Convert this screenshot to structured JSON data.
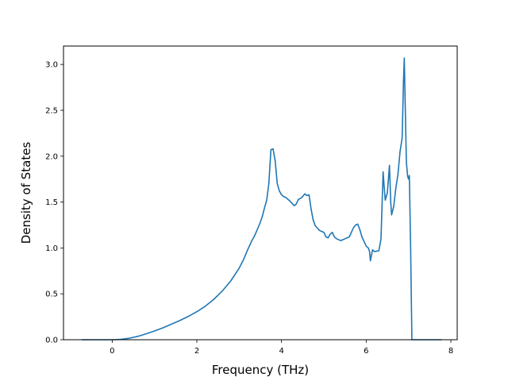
{
  "chart_data": {
    "type": "line",
    "title": "",
    "xlabel": "Frequency (THz)",
    "ylabel": "Density of States",
    "xlim": [
      -1.15,
      8.15
    ],
    "ylim": [
      0.0,
      3.2
    ],
    "xticks": [
      0,
      2,
      4,
      6,
      8
    ],
    "xtick_labels": [
      "0",
      "2",
      "4",
      "6",
      "8"
    ],
    "yticks": [
      0.0,
      0.5,
      1.0,
      1.5,
      2.0,
      2.5,
      3.0
    ],
    "ytick_labels": [
      "0.0",
      "0.5",
      "1.0",
      "1.5",
      "2.0",
      "2.5",
      "3.0"
    ],
    "grid": false,
    "legend": "none",
    "colors": {
      "line": "#1f77b4",
      "axes": "#000000",
      "background": "#ffffff"
    },
    "series": [
      {
        "x": [
          -0.72,
          -0.5,
          -0.25,
          0.0,
          0.2,
          0.4,
          0.6,
          0.8,
          1.0,
          1.2,
          1.4,
          1.6,
          1.8,
          2.0,
          2.2,
          2.4,
          2.6,
          2.8,
          3.0,
          3.1,
          3.2,
          3.3,
          3.35,
          3.4,
          3.5,
          3.55,
          3.6,
          3.65,
          3.7,
          3.75,
          3.8,
          3.85,
          3.9,
          3.95,
          4.0,
          4.05,
          4.1,
          4.2,
          4.3,
          4.35,
          4.4,
          4.45,
          4.5,
          4.55,
          4.6,
          4.65,
          4.7,
          4.75,
          4.8,
          4.9,
          5.0,
          5.05,
          5.1,
          5.15,
          5.2,
          5.25,
          5.3,
          5.4,
          5.5,
          5.6,
          5.7,
          5.75,
          5.8,
          5.85,
          5.9,
          6.0,
          6.05,
          6.08,
          6.1,
          6.15,
          6.2,
          6.3,
          6.35,
          6.4,
          6.42,
          6.45,
          6.5,
          6.55,
          6.58,
          6.6,
          6.65,
          6.7,
          6.75,
          6.8,
          6.85,
          6.88,
          6.9,
          6.92,
          6.95,
          6.98,
          7.0,
          7.02,
          7.05,
          7.08,
          7.2,
          7.5,
          7.78
        ],
        "y": [
          0.0,
          0.0,
          0.0,
          0.0,
          0.004,
          0.016,
          0.036,
          0.064,
          0.095,
          0.13,
          0.17,
          0.21,
          0.255,
          0.305,
          0.365,
          0.44,
          0.53,
          0.64,
          0.78,
          0.87,
          0.98,
          1.08,
          1.12,
          1.17,
          1.28,
          1.35,
          1.44,
          1.52,
          1.7,
          2.07,
          2.08,
          1.95,
          1.7,
          1.62,
          1.58,
          1.56,
          1.55,
          1.51,
          1.46,
          1.48,
          1.53,
          1.54,
          1.56,
          1.59,
          1.57,
          1.58,
          1.42,
          1.3,
          1.24,
          1.19,
          1.17,
          1.12,
          1.11,
          1.15,
          1.17,
          1.12,
          1.1,
          1.08,
          1.1,
          1.12,
          1.22,
          1.25,
          1.26,
          1.2,
          1.12,
          1.02,
          1.0,
          0.96,
          0.86,
          0.98,
          0.96,
          0.97,
          1.1,
          1.83,
          1.7,
          1.52,
          1.6,
          1.9,
          1.5,
          1.36,
          1.45,
          1.65,
          1.8,
          2.05,
          2.2,
          2.8,
          3.07,
          2.6,
          1.93,
          1.78,
          1.75,
          1.79,
          1.0,
          0.0,
          0.0,
          0.0,
          0.0
        ]
      }
    ]
  }
}
